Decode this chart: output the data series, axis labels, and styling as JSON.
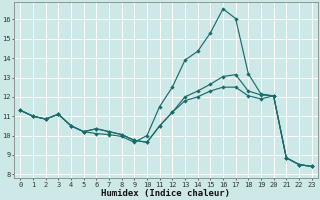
{
  "xlabel": "Humidex (Indice chaleur)",
  "background_color": "#cde9e7",
  "grid_color": "#ffffff",
  "line_color": "#1a6b6b",
  "xlim": [
    -0.5,
    23.5
  ],
  "ylim": [
    7.8,
    16.9
  ],
  "xticks": [
    0,
    1,
    2,
    3,
    4,
    5,
    6,
    7,
    8,
    9,
    10,
    11,
    12,
    13,
    14,
    15,
    16,
    17,
    18,
    19,
    20,
    21,
    22,
    23
  ],
  "yticks": [
    8,
    9,
    10,
    11,
    12,
    13,
    14,
    15,
    16
  ],
  "line1_x": [
    0,
    1,
    2,
    3,
    4,
    5,
    6,
    7,
    8,
    9,
    10,
    11,
    12,
    13,
    14,
    15,
    16,
    17,
    18,
    19,
    20,
    21,
    22,
    23
  ],
  "line1_y": [
    11.3,
    11.0,
    10.85,
    11.1,
    10.5,
    10.2,
    10.1,
    10.05,
    9.95,
    9.65,
    10.0,
    11.5,
    12.5,
    13.9,
    14.35,
    15.3,
    16.55,
    16.05,
    13.2,
    12.15,
    12.05,
    8.85,
    8.5,
    8.4
  ],
  "line2_x": [
    0,
    1,
    2,
    3,
    4,
    5,
    6,
    7,
    8,
    9,
    10,
    11,
    12,
    13,
    14,
    15,
    16,
    17,
    18,
    19,
    20,
    21,
    22,
    23
  ],
  "line2_y": [
    11.3,
    11.0,
    10.85,
    11.1,
    10.5,
    10.2,
    10.35,
    10.2,
    10.05,
    9.75,
    9.65,
    10.5,
    11.2,
    12.0,
    12.3,
    12.65,
    13.05,
    13.15,
    12.3,
    12.1,
    12.05,
    8.85,
    8.5,
    8.4
  ],
  "line3_x": [
    0,
    1,
    2,
    3,
    4,
    5,
    6,
    7,
    8,
    9,
    10,
    11,
    12,
    13,
    14,
    15,
    16,
    17,
    18,
    19,
    20,
    21,
    22,
    23
  ],
  "line3_y": [
    11.3,
    11.0,
    10.85,
    11.1,
    10.5,
    10.2,
    10.35,
    10.2,
    10.05,
    9.75,
    9.65,
    10.5,
    11.2,
    11.8,
    12.0,
    12.3,
    12.5,
    12.5,
    12.05,
    11.9,
    12.05,
    8.85,
    8.5,
    8.4
  ],
  "marker_size": 2.2,
  "line_width": 0.85,
  "tick_fontsize": 5.0,
  "label_fontsize": 6.5,
  "fig_width": 3.2,
  "fig_height": 2.0,
  "dpi": 100
}
